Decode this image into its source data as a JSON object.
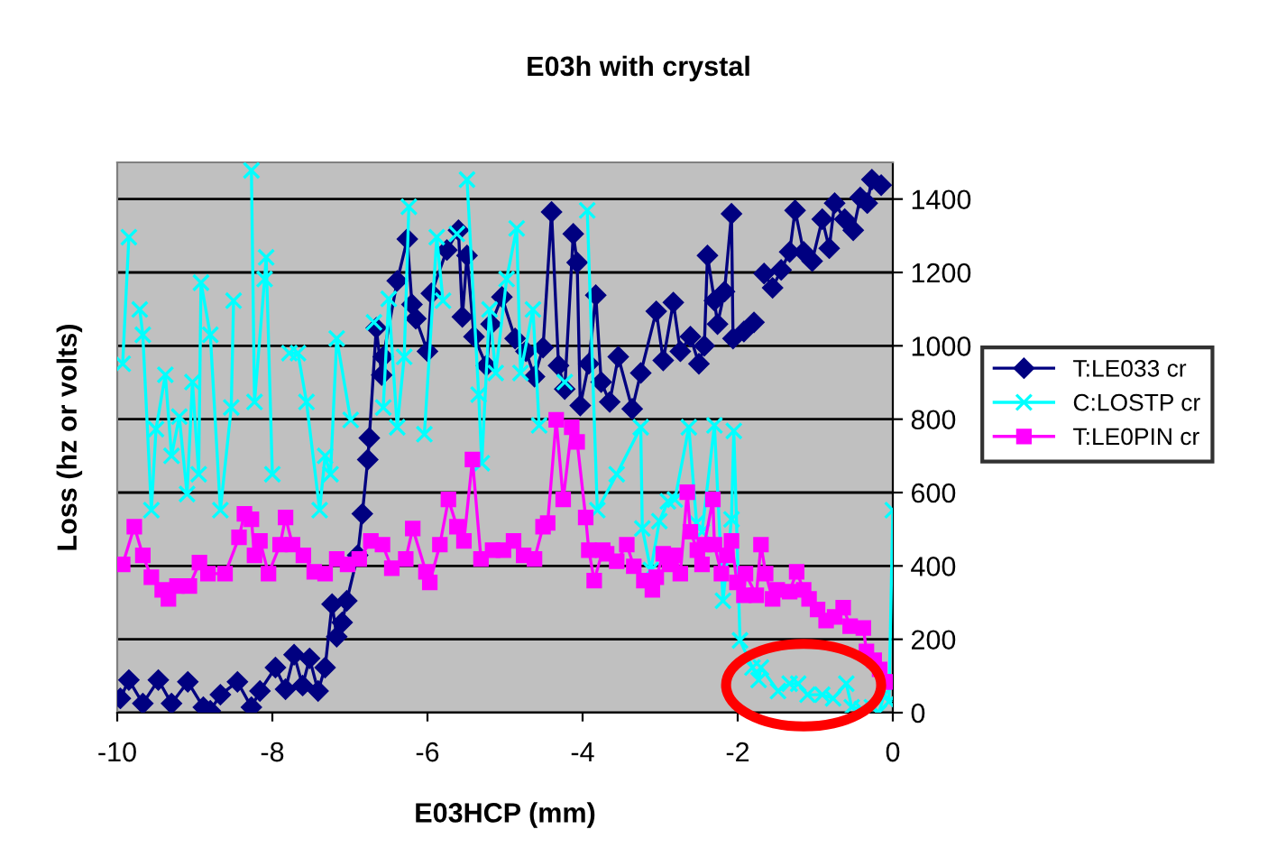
{
  "chart_data": {
    "type": "line",
    "title": "E03h with crystal",
    "xlabel": "E03HCP (mm)",
    "ylabel": "Loss (hz or volts)",
    "xlim": [
      -10,
      0
    ],
    "xticks": [
      -10,
      -8,
      -6,
      -4,
      -2,
      0
    ],
    "ylim": [
      0,
      1500
    ],
    "yticks": [
      0,
      200,
      400,
      600,
      800,
      1000,
      1200,
      1400
    ],
    "grid": "y",
    "legend": "right",
    "line_style": "solid",
    "series": [
      {
        "name": "T:LE033 cr",
        "color": "#000080",
        "marker": "diamond",
        "x": [
          -9.96,
          -9.85,
          -9.67,
          -9.47,
          -9.3,
          -9.09,
          -8.89,
          -8.8,
          -8.67,
          -8.45,
          -8.27,
          -8.16,
          -7.96,
          -7.83,
          -7.72,
          -7.61,
          -7.52,
          -7.41,
          -7.32,
          -7.23,
          -7.17,
          -7.1,
          -7.04,
          -6.9,
          -6.84,
          -6.77,
          -6.75,
          -6.66,
          -6.59,
          -6.57,
          -6.39,
          -6.26,
          -6.2,
          -6.15,
          -6.0,
          -5.95,
          -5.75,
          -5.6,
          -5.55,
          -5.49,
          -5.4,
          -5.24,
          -5.18,
          -5.04,
          -4.87,
          -4.73,
          -4.62,
          -4.51,
          -4.4,
          -4.31,
          -4.23,
          -4.12,
          -4.07,
          -4.03,
          -3.92,
          -3.83,
          -3.76,
          -3.65,
          -3.54,
          -3.36,
          -3.25,
          -3.05,
          -2.96,
          -2.83,
          -2.74,
          -2.61,
          -2.5,
          -2.43,
          -2.39,
          -2.3,
          -2.26,
          -2.17,
          -2.08,
          -2.06,
          -1.92,
          -1.79,
          -1.73,
          -1.66,
          -1.55,
          -1.44,
          -1.33,
          -1.26,
          -1.15,
          -1.04,
          -0.91,
          -0.82,
          -0.75,
          -0.62,
          -0.51,
          -0.42,
          -0.33,
          -0.27,
          -0.15
        ],
        "values": [
          39,
          89,
          25,
          89,
          25,
          84,
          15,
          5,
          49,
          84,
          15,
          59,
          123,
          64,
          158,
          74,
          148,
          59,
          123,
          296,
          207,
          246,
          305,
          429,
          542,
          690,
          749,
          1049,
          920,
          970,
          1177,
          1291,
          1113,
          1074,
          985,
          1143,
          1261,
          1315,
          1079,
          1246,
          1025,
          946,
          1059,
          1133,
          1020,
          985,
          916,
          995,
          1365,
          946,
          882,
          1305,
          1227,
          837,
          951,
          1138,
          901,
          847,
          970,
          828,
          926,
          1094,
          960,
          1118,
          985,
          1025,
          951,
          1000,
          1246,
          1123,
          1059,
          1148,
          1360,
          1020,
          1039,
          1064,
          null,
          1197,
          1158,
          1207,
          1256,
          1369,
          1256,
          1231,
          1345,
          1266,
          1389,
          1345,
          1315,
          1404,
          1389,
          1453,
          1438
        ]
      },
      {
        "name": "C:LOSTP cr",
        "color": "#00ffff",
        "marker": "cross",
        "x": [
          -9.93,
          -9.85,
          -9.78,
          -9.71,
          -9.67,
          -9.56,
          -9.5,
          -9.38,
          -9.3,
          -9.2,
          -9.1,
          -9.03,
          -8.95,
          -8.92,
          -8.8,
          -8.67,
          -8.53,
          -8.5,
          -8.4,
          -8.27,
          -8.23,
          -8.1,
          -8.08,
          -8.0,
          -7.9,
          -7.84,
          -7.78,
          -7.67,
          -7.56,
          -7.39,
          -7.32,
          -7.25,
          -7.17,
          -6.99,
          -6.8,
          -6.69,
          -6.6,
          -6.57,
          -6.5,
          -6.39,
          -6.3,
          -6.24,
          -6.18,
          -6.04,
          -5.88,
          -5.8,
          -5.72,
          -5.62,
          -5.55,
          -5.49,
          -5.34,
          -5.3,
          -5.2,
          -5.12,
          -4.98,
          -4.85,
          -4.8,
          -4.64,
          -4.56,
          -4.48,
          -4.43,
          -4.34,
          -4.23,
          -4.1,
          -3.94,
          -3.81,
          -3.56,
          -3.25,
          -3.23,
          -3.12,
          -3.01,
          -2.9,
          -2.81,
          -2.63,
          -2.53,
          -2.46,
          -2.3,
          -2.19,
          -2.08,
          -2.05,
          -1.97,
          -1.81,
          -1.73,
          -1.7,
          -1.48,
          -1.33,
          -1.22,
          -1.1,
          -0.91,
          -0.77,
          -0.6,
          -0.53,
          -0.4,
          -0.27,
          -0.18,
          -0.11,
          -0.05,
          0.0
        ],
        "values": [
          951,
          1296,
          null,
          1099,
          1030,
          552,
          773,
          921,
          700,
          807,
          596,
          901,
          650,
          1172,
          1030,
          552,
          832,
          1123,
          null,
          1478,
          847,
          1182,
          1241,
          650,
          null,
          null,
          980,
          980,
          847,
          552,
          700,
          650,
          1020,
          798,
          null,
          1064,
          null,
          832,
          1128,
          778,
          970,
          1379,
          null,
          759,
          1296,
          1123,
          null,
          1305,
          null,
          1453,
          867,
          680,
          1099,
          926,
          1182,
          1320,
          926,
          1099,
          783,
          null,
          null,
          null,
          901,
          null,
          1369,
          552,
          650,
          778,
          502,
          389,
          522,
          576,
          581,
          778,
          517,
          493,
          783,
          305,
          527,
          768,
          197,
          123,
          89,
          123,
          59,
          79,
          79,
          49,
          49,
          39,
          79,
          15,
          10,
          15,
          0,
          49,
          30,
          552
        ]
      },
      {
        "name": "T:LE0PIN cr",
        "color": "#ff00ff",
        "marker": "square",
        "x": [
          -9.93,
          -9.78,
          -9.67,
          -9.56,
          -9.42,
          -9.34,
          -9.23,
          -9.07,
          -8.94,
          -8.83,
          -8.61,
          -8.43,
          -8.36,
          -8.27,
          -8.23,
          -8.16,
          -8.05,
          -7.9,
          -7.83,
          -7.74,
          -7.6,
          -7.46,
          -7.32,
          -7.17,
          -7.03,
          -6.88,
          -6.73,
          -6.58,
          -6.46,
          -6.28,
          -6.19,
          -6.02,
          -5.97,
          -5.84,
          -5.73,
          -5.62,
          -5.53,
          -5.42,
          -5.31,
          -5.16,
          -5.02,
          -4.89,
          -4.76,
          -4.62,
          -4.51,
          -4.45,
          -4.34,
          -4.25,
          -4.14,
          -4.07,
          -3.96,
          -3.92,
          -3.85,
          -3.74,
          -3.69,
          -3.56,
          -3.43,
          -3.34,
          -3.21,
          -3.1,
          -3.05,
          -2.96,
          -2.88,
          -2.81,
          -2.74,
          -2.65,
          -2.61,
          -2.52,
          -2.46,
          -2.43,
          -2.32,
          -2.3,
          -2.21,
          -2.14,
          -2.08,
          -2.01,
          -1.92,
          -1.9,
          -1.76,
          -1.7,
          -1.64,
          -1.55,
          -1.49,
          -1.33,
          -1.24,
          -1.15,
          -1.08,
          -0.97,
          -0.86,
          -0.75,
          -0.64,
          -0.55,
          -0.38,
          -0.34,
          -0.24,
          -0.17,
          -0.11,
          -0.04
        ],
        "values": [
          404,
          507,
          429,
          369,
          335,
          310,
          345,
          345,
          409,
          379,
          379,
          478,
          542,
          527,
          429,
          468,
          379,
          458,
          532,
          458,
          429,
          384,
          379,
          419,
          404,
          419,
          468,
          458,
          394,
          419,
          502,
          384,
          355,
          458,
          581,
          507,
          468,
          690,
          419,
          443,
          443,
          468,
          429,
          419,
          507,
          517,
          798,
          581,
          778,
          738,
          532,
          443,
          360,
          443,
          433,
          413,
          458,
          399,
          360,
          335,
          369,
          433,
          404,
          429,
          379,
          601,
          493,
          443,
          404,
          458,
          581,
          458,
          379,
          429,
          468,
          355,
          320,
          379,
          320,
          458,
          379,
          310,
          335,
          330,
          384,
          335,
          310,
          281,
          251,
          261,
          286,
          236,
          231,
          167,
          143,
          118,
          84,
          84
        ]
      }
    ]
  }
}
